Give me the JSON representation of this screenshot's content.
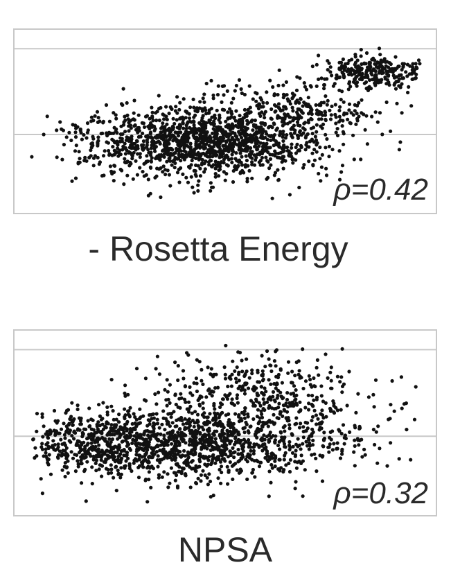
{
  "chart_data": [
    {
      "type": "scatter",
      "xlabel": "- Rosetta Energy",
      "annotation": "ρ=0.42",
      "grid": true,
      "xlim": [
        0,
        1
      ],
      "ylim": [
        0,
        1
      ],
      "gridlines_y": [
        0.42,
        0.94
      ],
      "n_points": 1900,
      "seed": 17,
      "clusters": [
        {
          "weight": 0.7,
          "cx": 0.45,
          "cy": 0.38,
          "sx": 0.15,
          "sy": 0.11
        },
        {
          "weight": 0.14,
          "cx": 0.87,
          "cy": 0.8,
          "sx": 0.06,
          "sy": 0.05
        },
        {
          "weight": 0.12,
          "cx": 0.68,
          "cy": 0.58,
          "sx": 0.11,
          "sy": 0.09
        },
        {
          "weight": 0.04,
          "cx": 0.3,
          "cy": 0.32,
          "sx": 0.12,
          "sy": 0.07
        }
      ],
      "outliers": [
        [
          0.05,
          0.42
        ],
        [
          0.17,
          0.36
        ],
        [
          0.31,
          0.05
        ],
        [
          0.34,
          0.04
        ],
        [
          0.91,
          0.44
        ]
      ]
    },
    {
      "type": "scatter",
      "xlabel": "NPSA",
      "annotation": "ρ=0.32",
      "grid": true,
      "xlim": [
        0,
        1
      ],
      "ylim": [
        0,
        1
      ],
      "gridlines_y": [
        0.42,
        0.94
      ],
      "n_points": 1900,
      "seed": 91,
      "clusters": [
        {
          "weight": 0.62,
          "cx": 0.42,
          "cy": 0.38,
          "sx": 0.2,
          "sy": 0.11
        },
        {
          "weight": 0.23,
          "cx": 0.58,
          "cy": 0.66,
          "sx": 0.14,
          "sy": 0.13
        },
        {
          "weight": 0.15,
          "cx": 0.2,
          "cy": 0.36,
          "sx": 0.09,
          "sy": 0.09
        }
      ],
      "outliers": [
        [
          0.05,
          0.48
        ],
        [
          0.06,
          0.38
        ],
        [
          0.09,
          0.33
        ],
        [
          0.12,
          0.62
        ],
        [
          0.97,
          0.52
        ],
        [
          0.91,
          0.38
        ],
        [
          0.95,
          0.46
        ]
      ]
    }
  ]
}
